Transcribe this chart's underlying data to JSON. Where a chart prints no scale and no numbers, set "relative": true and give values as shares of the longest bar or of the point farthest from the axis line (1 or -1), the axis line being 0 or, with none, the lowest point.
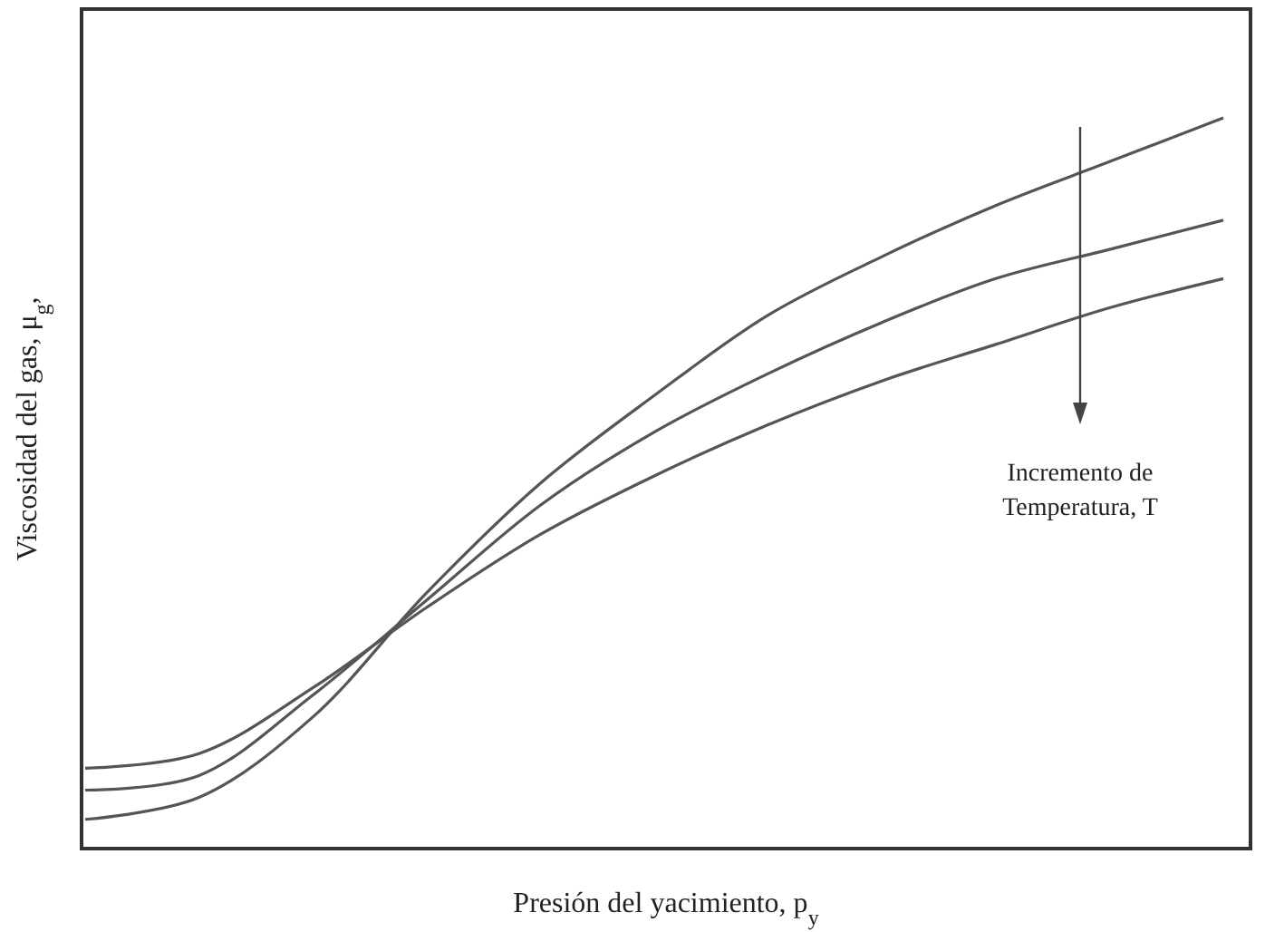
{
  "chart_data": {
    "type": "line",
    "relative": true,
    "xlabel": "Presión del yacimiento, p$_{y}$",
    "ylabel": "Viscosidad del gas, μ$_{g}$,",
    "categories": [
      null,
      null,
      null,
      null,
      null,
      null,
      null,
      null,
      null,
      null,
      null
    ],
    "series": [
      {
        "color": "#555555",
        "values": [
          0.04,
          0.07,
          0.18,
          0.35,
          0.5,
          0.62,
          0.73,
          0.81,
          0.88,
          0.94,
          1
        ]
      },
      {
        "color": "#555555",
        "values": [
          0.08,
          0.1,
          0.21,
          0.34,
          0.47,
          0.57,
          0.65,
          0.72,
          0.78,
          0.82,
          0.86
        ]
      },
      {
        "color": "#555555",
        "values": [
          0.11,
          0.13,
          0.22,
          0.33,
          0.43,
          0.51,
          0.58,
          0.64,
          0.69,
          0.74,
          0.78
        ]
      }
    ],
    "annotations": [
      "Incremento de Temperatura, T"
    ],
    "marker": "none",
    "line_style": "solid"
  }
}
